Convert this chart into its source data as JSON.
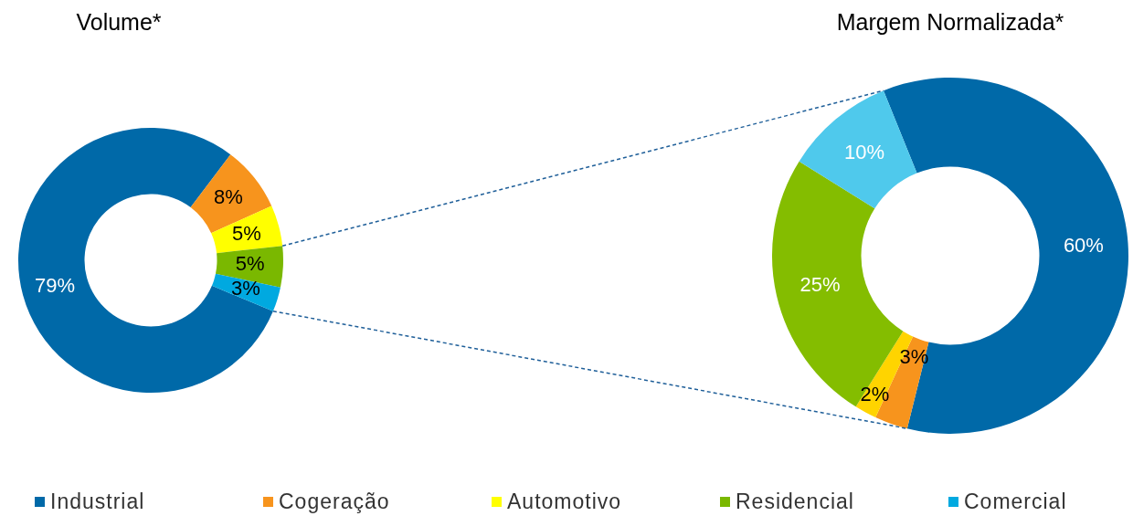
{
  "chart_data": [
    {
      "type": "donut",
      "title": "Volume*",
      "categories": [
        "Industrial",
        "Cogeração",
        "Automotivo",
        "Residencial",
        "Comercial"
      ],
      "values": [
        79,
        8,
        5,
        5,
        3
      ],
      "value_labels": [
        "79%",
        "8%",
        "5%",
        "5%",
        "3%"
      ],
      "colors": [
        "#0069a8",
        "#f7941d",
        "#ffff00",
        "#7ab800",
        "#00a9e0"
      ],
      "legend": "bottom"
    },
    {
      "type": "donut",
      "title": "Margem Normalizada*",
      "categories": [
        null,
        null,
        null,
        null,
        null
      ],
      "values": [
        60,
        3,
        2,
        25,
        10
      ],
      "value_labels": [
        "60%",
        "3%",
        "2%",
        "25%",
        "10%"
      ],
      "colors": [
        "#0069a8",
        "#f7941d",
        "#ffd400",
        "#84bd00",
        "#4fc9ec"
      ]
    }
  ]
}
